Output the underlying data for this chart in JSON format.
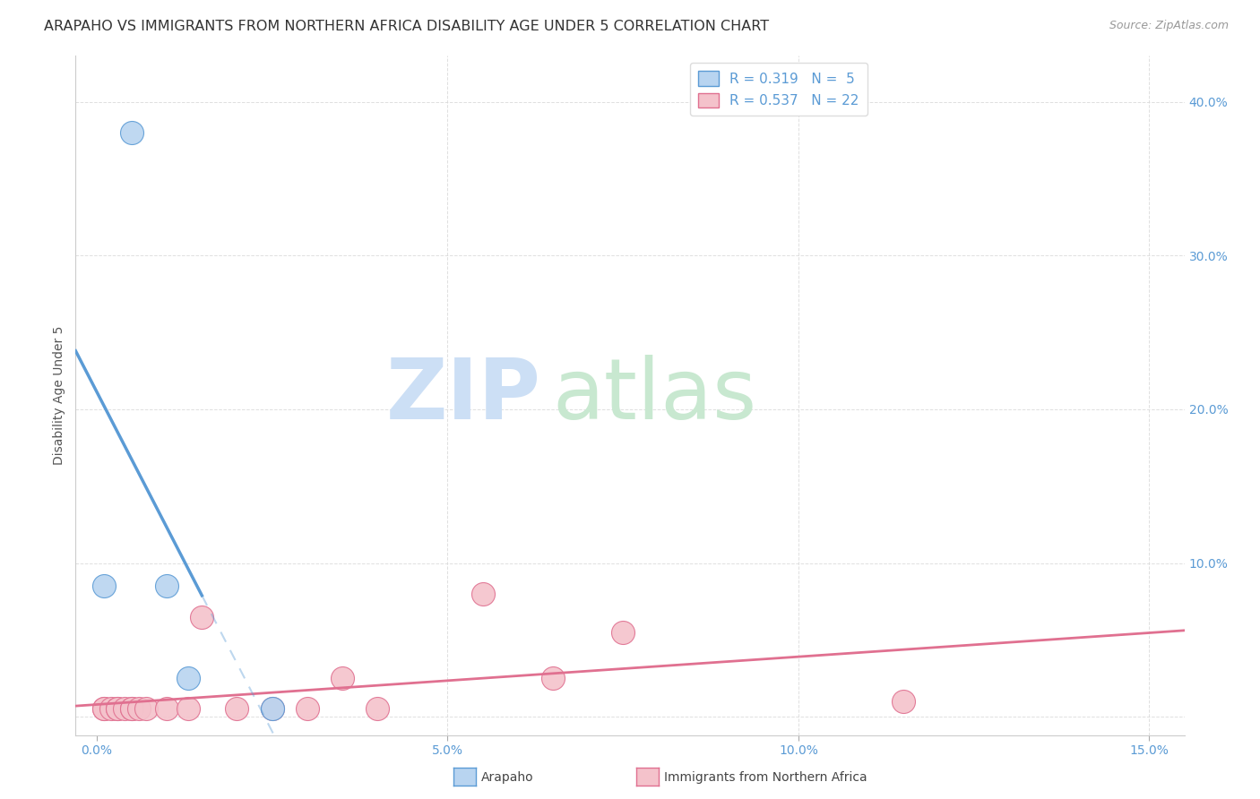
{
  "title": "ARAPAHO VS IMMIGRANTS FROM NORTHERN AFRICA DISABILITY AGE UNDER 5 CORRELATION CHART",
  "source": "Source: ZipAtlas.com",
  "ylabel": "Disability Age Under 5",
  "background_color": "#ffffff",
  "arapaho_color": "#b8d4f0",
  "arapaho_line_color": "#5b9bd5",
  "immigrants_color": "#f4c2cb",
  "immigrants_line_color": "#e07090",
  "legend_arapaho_R": "0.319",
  "legend_arapaho_N": "5",
  "legend_immigrants_R": "0.537",
  "legend_immigrants_N": "22",
  "arapaho_scatter_x": [
    0.001,
    0.005,
    0.01,
    0.013,
    0.025
  ],
  "arapaho_scatter_y": [
    0.085,
    0.38,
    0.085,
    0.025,
    0.005
  ],
  "immigrants_scatter_x": [
    0.001,
    0.001,
    0.002,
    0.003,
    0.003,
    0.004,
    0.005,
    0.005,
    0.006,
    0.007,
    0.01,
    0.013,
    0.015,
    0.02,
    0.025,
    0.03,
    0.035,
    0.04,
    0.055,
    0.065,
    0.075,
    0.115
  ],
  "immigrants_scatter_y": [
    0.005,
    0.005,
    0.005,
    0.005,
    0.005,
    0.005,
    0.005,
    0.005,
    0.005,
    0.005,
    0.005,
    0.005,
    0.065,
    0.005,
    0.005,
    0.005,
    0.025,
    0.005,
    0.08,
    0.025,
    0.055,
    0.01
  ],
  "xlim": [
    -0.003,
    0.155
  ],
  "ylim": [
    -0.012,
    0.43
  ],
  "xticks": [
    0.0,
    0.05,
    0.1,
    0.15
  ],
  "xtick_labels": [
    "0.0%",
    "5.0%",
    "10.0%",
    "15.0%"
  ],
  "yticks_right": [
    0.0,
    0.1,
    0.2,
    0.3,
    0.4
  ],
  "ytick_right_labels": [
    "",
    "10.0%",
    "20.0%",
    "30.0%",
    "40.0%"
  ],
  "grid_color": "#d8d8d8",
  "title_fontsize": 11.5,
  "axis_label_fontsize": 10,
  "tick_fontsize": 10,
  "source_fontsize": 9,
  "watermark_zip_color": "#ccdff5",
  "watermark_atlas_color": "#c8e8d0"
}
